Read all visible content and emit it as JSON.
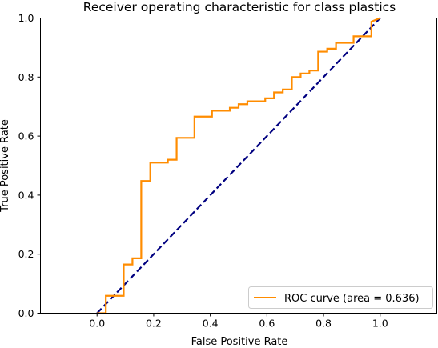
{
  "chart_data": {
    "type": "line",
    "title": "Receiver operating characteristic for class plastics",
    "xlabel": "False Positive Rate",
    "ylabel": "True Positive Rate",
    "xlim": [
      -0.2,
      1.2
    ],
    "ylim": [
      0.0,
      1.0
    ],
    "x_ticks": [
      "0.0",
      "0.2",
      "0.4",
      "0.6",
      "0.8",
      "1.0"
    ],
    "y_ticks": [
      "0.0",
      "0.2",
      "0.4",
      "0.6",
      "0.8",
      "1.0"
    ],
    "grid": false,
    "legend_position": "lower-right",
    "series": [
      {
        "name": "ROC curve (area = 0.636)",
        "color": "#ff8c00",
        "style": "solid",
        "x": [
          0.0,
          0.031,
          0.031,
          0.031,
          0.094,
          0.094,
          0.125,
          0.125,
          0.156,
          0.156,
          0.188,
          0.188,
          0.25,
          0.25,
          0.281,
          0.281,
          0.344,
          0.344,
          0.406,
          0.406,
          0.469,
          0.469,
          0.5,
          0.5,
          0.531,
          0.531,
          0.594,
          0.594,
          0.625,
          0.625,
          0.656,
          0.656,
          0.688,
          0.688,
          0.719,
          0.719,
          0.75,
          0.75,
          0.781,
          0.781,
          0.813,
          0.813,
          0.844,
          0.844,
          0.906,
          0.906,
          0.969,
          0.969,
          1.0
        ],
        "y": [
          0.0,
          0.0,
          0.025,
          0.059,
          0.059,
          0.165,
          0.165,
          0.186,
          0.186,
          0.448,
          0.448,
          0.51,
          0.51,
          0.52,
          0.52,
          0.594,
          0.594,
          0.666,
          0.666,
          0.686,
          0.686,
          0.696,
          0.696,
          0.708,
          0.708,
          0.718,
          0.718,
          0.728,
          0.728,
          0.748,
          0.748,
          0.758,
          0.758,
          0.8,
          0.8,
          0.812,
          0.812,
          0.822,
          0.822,
          0.886,
          0.886,
          0.896,
          0.896,
          0.916,
          0.916,
          0.938,
          0.938,
          0.988,
          1.0
        ]
      },
      {
        "name": "",
        "color": "#000080",
        "style": "dashed",
        "x": [
          0.0,
          1.0
        ],
        "y": [
          0.0,
          1.0
        ]
      }
    ]
  }
}
